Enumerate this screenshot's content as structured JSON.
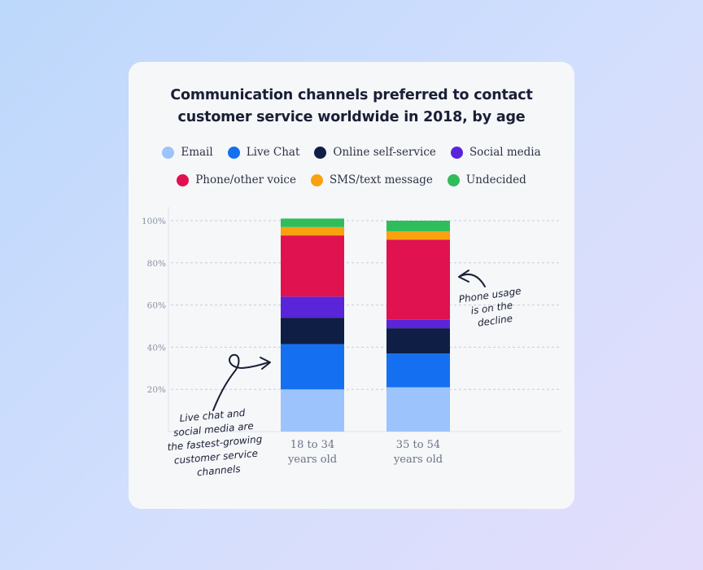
{
  "chart_data": {
    "type": "bar",
    "stacked": true,
    "title": "Communication channels preferred to contact customer service worldwide in 2018, by age",
    "title_lines": [
      "Communication channels preferred to contact",
      "customer service worldwide in 2018, by age"
    ],
    "categories": [
      "18 to 34 years old",
      "35 to 54 years old"
    ],
    "category_lines": [
      [
        "18 to 34",
        "years old"
      ],
      [
        "35 to 54",
        "years old"
      ]
    ],
    "series": [
      {
        "name": "Email",
        "color": "#9cc3fc",
        "values": [
          20,
          21
        ]
      },
      {
        "name": "Live Chat",
        "color": "#1470f0",
        "values": [
          21.5,
          16
        ]
      },
      {
        "name": "Online self-service",
        "color": "#0f1e45",
        "values": [
          12.5,
          12
        ]
      },
      {
        "name": "Social media",
        "color": "#5a24d9",
        "values": [
          10,
          4
        ]
      },
      {
        "name": "Phone/other voice",
        "color": "#e0124f",
        "values": [
          29,
          38
        ]
      },
      {
        "name": "SMS/text message",
        "color": "#f9a10f",
        "values": [
          4,
          4
        ]
      },
      {
        "name": "Undecided",
        "color": "#2fbd5a",
        "values": [
          4,
          5
        ]
      }
    ],
    "yticks": [
      "20%",
      "40%",
      "60%",
      "80%",
      "100%"
    ],
    "ytick_values": [
      20,
      40,
      60,
      80,
      100
    ],
    "ylim": [
      0,
      100
    ],
    "grid": true,
    "legend_position": "top",
    "annotations": [
      {
        "lines": [
          "Live chat and",
          "social media are",
          "the fastest-growing",
          "customer service",
          "channels"
        ]
      },
      {
        "lines": [
          "Phone usage",
          "is on the",
          "decline"
        ]
      }
    ]
  }
}
